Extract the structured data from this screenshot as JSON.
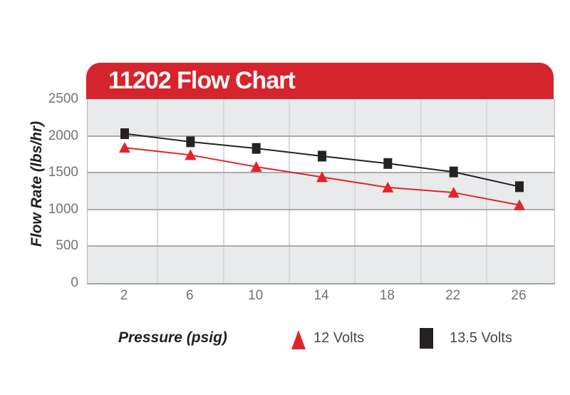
{
  "chart_data": {
    "type": "line",
    "title": "11202 Flow Chart",
    "xlabel": "Pressure (psig)",
    "ylabel": "Flow Rate (lbs/hr)",
    "x": [
      2,
      6,
      10,
      14,
      18,
      22,
      26
    ],
    "ylim": [
      0,
      2500
    ],
    "yticks": [
      0,
      500,
      1000,
      1500,
      2000,
      2500
    ],
    "series": [
      {
        "name": "12 Volts",
        "marker": "triangle",
        "color": "#e02529",
        "values": [
          1840,
          1740,
          1580,
          1440,
          1300,
          1230,
          1060
        ]
      },
      {
        "name": "13.5 Volts",
        "marker": "square",
        "color": "#262223",
        "values": [
          2030,
          1920,
          1830,
          1725,
          1625,
          1510,
          1310
        ]
      }
    ],
    "grid": {
      "horizontal": true,
      "vertical": "between-categories"
    },
    "legend_position": "bottom"
  },
  "style": {
    "banner_color": "#d5242c",
    "band_color": "#e9eaec",
    "band_alt_color": "#ffffff",
    "hgrid_color": "#a9abad",
    "vgrid_color": "#d8d9db",
    "tick_color": "#717276",
    "text_color": "#232021",
    "legend_text_color": "#48484a"
  }
}
